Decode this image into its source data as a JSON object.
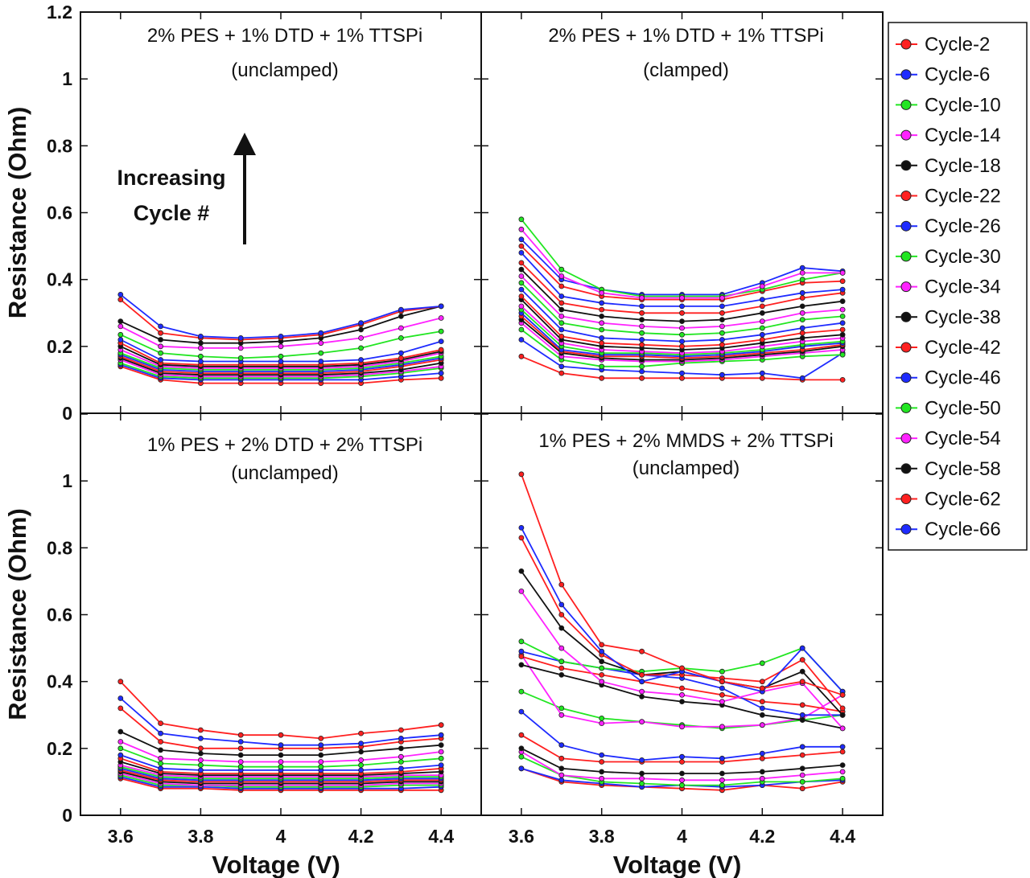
{
  "chart_data": {
    "type": "line",
    "x": [
      3.6,
      3.7,
      3.8,
      3.9,
      4.0,
      4.1,
      4.2,
      4.3,
      4.4
    ],
    "xlabel": "Voltage (V)",
    "ylabel": "Resistance (Ohm)",
    "xlim": [
      3.5,
      4.5
    ],
    "ylim": [
      0,
      1.2
    ],
    "x_ticks": [
      "3.6",
      "3.8",
      "4",
      "4.2",
      "4.4"
    ],
    "y_ticks_top": [
      "0",
      "0.2",
      "0.4",
      "0.6",
      "0.8",
      "1",
      "1.2"
    ],
    "y_ticks_bottom": [
      "0",
      "0.2",
      "0.4",
      "0.6",
      "0.8",
      "1"
    ],
    "legend": [
      {
        "name": "Cycle-2",
        "color": "#ff2020"
      },
      {
        "name": "Cycle-6",
        "color": "#1e2bff"
      },
      {
        "name": "Cycle-10",
        "color": "#22e622"
      },
      {
        "name": "Cycle-14",
        "color": "#ff22ff"
      },
      {
        "name": "Cycle-18",
        "color": "#111111"
      },
      {
        "name": "Cycle-22",
        "color": "#ff2020"
      },
      {
        "name": "Cycle-26",
        "color": "#1e2bff"
      },
      {
        "name": "Cycle-30",
        "color": "#22e622"
      },
      {
        "name": "Cycle-34",
        "color": "#ff22ff"
      },
      {
        "name": "Cycle-38",
        "color": "#111111"
      },
      {
        "name": "Cycle-42",
        "color": "#ff2020"
      },
      {
        "name": "Cycle-46",
        "color": "#1e2bff"
      },
      {
        "name": "Cycle-50",
        "color": "#22e622"
      },
      {
        "name": "Cycle-54",
        "color": "#ff22ff"
      },
      {
        "name": "Cycle-58",
        "color": "#111111"
      },
      {
        "name": "Cycle-62",
        "color": "#ff2020"
      },
      {
        "name": "Cycle-66",
        "color": "#1e2bff"
      }
    ],
    "annotation": {
      "line1": "Increasing",
      "line2": "Cycle #"
    },
    "panels": [
      {
        "title_line1": "2% PES + 1% DTD + 1% TTSPi",
        "title_line2": "(unclamped)",
        "series": [
          [
            0.14,
            0.1,
            0.09,
            0.09,
            0.09,
            0.09,
            0.09,
            0.1,
            0.105
          ],
          [
            0.145,
            0.105,
            0.1,
            0.1,
            0.1,
            0.1,
            0.1,
            0.11,
            0.12
          ],
          [
            0.15,
            0.11,
            0.105,
            0.105,
            0.105,
            0.105,
            0.11,
            0.12,
            0.135
          ],
          [
            0.16,
            0.115,
            0.11,
            0.11,
            0.11,
            0.11,
            0.115,
            0.125,
            0.14
          ],
          [
            0.165,
            0.12,
            0.115,
            0.115,
            0.115,
            0.115,
            0.12,
            0.13,
            0.15
          ],
          [
            0.17,
            0.125,
            0.12,
            0.12,
            0.12,
            0.12,
            0.125,
            0.14,
            0.16
          ],
          [
            0.175,
            0.13,
            0.125,
            0.125,
            0.125,
            0.125,
            0.13,
            0.145,
            0.165
          ],
          [
            0.18,
            0.135,
            0.13,
            0.13,
            0.13,
            0.13,
            0.135,
            0.15,
            0.17
          ],
          [
            0.19,
            0.14,
            0.135,
            0.135,
            0.135,
            0.135,
            0.14,
            0.155,
            0.18
          ],
          [
            0.2,
            0.145,
            0.14,
            0.14,
            0.14,
            0.14,
            0.145,
            0.16,
            0.185
          ],
          [
            0.21,
            0.15,
            0.145,
            0.145,
            0.145,
            0.145,
            0.15,
            0.165,
            0.19
          ],
          [
            0.22,
            0.16,
            0.155,
            0.155,
            0.155,
            0.155,
            0.16,
            0.18,
            0.215
          ],
          [
            0.235,
            0.18,
            0.17,
            0.165,
            0.17,
            0.18,
            0.195,
            0.225,
            0.245
          ],
          [
            0.26,
            0.2,
            0.195,
            0.195,
            0.2,
            0.21,
            0.225,
            0.255,
            0.285
          ],
          [
            0.275,
            0.22,
            0.21,
            0.21,
            0.215,
            0.225,
            0.25,
            0.29,
            0.32
          ],
          [
            0.34,
            0.24,
            0.225,
            0.22,
            0.225,
            0.235,
            0.265,
            0.305,
            0.32
          ],
          [
            0.355,
            0.26,
            0.23,
            0.225,
            0.23,
            0.24,
            0.27,
            0.31,
            0.32
          ]
        ]
      },
      {
        "title_line1": "2% PES + 1% DTD + 1% TTSPi",
        "title_line2": "(clamped)",
        "series": [
          [
            0.17,
            0.12,
            0.105,
            0.105,
            0.105,
            0.105,
            0.105,
            0.1,
            0.1
          ],
          [
            0.22,
            0.14,
            0.13,
            0.125,
            0.12,
            0.115,
            0.12,
            0.105,
            0.18
          ],
          [
            0.25,
            0.16,
            0.14,
            0.14,
            0.15,
            0.155,
            0.16,
            0.17,
            0.175
          ],
          [
            0.27,
            0.17,
            0.16,
            0.155,
            0.155,
            0.16,
            0.17,
            0.18,
            0.19
          ],
          [
            0.28,
            0.18,
            0.165,
            0.16,
            0.16,
            0.165,
            0.175,
            0.185,
            0.2
          ],
          [
            0.29,
            0.185,
            0.17,
            0.17,
            0.165,
            0.17,
            0.18,
            0.19,
            0.205
          ],
          [
            0.3,
            0.19,
            0.175,
            0.175,
            0.17,
            0.175,
            0.185,
            0.2,
            0.21
          ],
          [
            0.31,
            0.2,
            0.18,
            0.18,
            0.175,
            0.18,
            0.19,
            0.205,
            0.215
          ],
          [
            0.32,
            0.21,
            0.19,
            0.185,
            0.18,
            0.185,
            0.2,
            0.215,
            0.225
          ],
          [
            0.34,
            0.22,
            0.2,
            0.195,
            0.19,
            0.195,
            0.21,
            0.225,
            0.235
          ],
          [
            0.35,
            0.23,
            0.21,
            0.205,
            0.2,
            0.205,
            0.22,
            0.24,
            0.25
          ],
          [
            0.37,
            0.25,
            0.225,
            0.22,
            0.215,
            0.22,
            0.235,
            0.255,
            0.27
          ],
          [
            0.39,
            0.27,
            0.25,
            0.24,
            0.235,
            0.24,
            0.255,
            0.28,
            0.29
          ],
          [
            0.41,
            0.29,
            0.27,
            0.26,
            0.255,
            0.26,
            0.275,
            0.3,
            0.31
          ],
          [
            0.43,
            0.31,
            0.29,
            0.28,
            0.275,
            0.28,
            0.3,
            0.32,
            0.335
          ],
          [
            0.45,
            0.33,
            0.31,
            0.3,
            0.3,
            0.3,
            0.32,
            0.345,
            0.36
          ],
          [
            0.48,
            0.35,
            0.33,
            0.32,
            0.32,
            0.32,
            0.34,
            0.36,
            0.37
          ],
          [
            0.5,
            0.38,
            0.35,
            0.34,
            0.34,
            0.34,
            0.365,
            0.39,
            0.395
          ],
          [
            0.52,
            0.4,
            0.37,
            0.355,
            0.355,
            0.355,
            0.39,
            0.435,
            0.425
          ],
          [
            0.58,
            0.43,
            0.37,
            0.35,
            0.35,
            0.35,
            0.37,
            0.4,
            0.42
          ],
          [
            0.55,
            0.41,
            0.36,
            0.345,
            0.345,
            0.345,
            0.38,
            0.42,
            0.42
          ]
        ]
      },
      {
        "title_line1": "1% PES + 2% DTD + 2% TTSPi",
        "title_line2": "(unclamped)",
        "series": [
          [
            0.11,
            0.08,
            0.08,
            0.075,
            0.075,
            0.075,
            0.075,
            0.075,
            0.075
          ],
          [
            0.115,
            0.085,
            0.085,
            0.08,
            0.08,
            0.08,
            0.08,
            0.08,
            0.085
          ],
          [
            0.12,
            0.09,
            0.09,
            0.085,
            0.085,
            0.085,
            0.085,
            0.09,
            0.09
          ],
          [
            0.125,
            0.095,
            0.09,
            0.09,
            0.09,
            0.09,
            0.09,
            0.095,
            0.095
          ],
          [
            0.13,
            0.1,
            0.095,
            0.095,
            0.095,
            0.095,
            0.095,
            0.1,
            0.1
          ],
          [
            0.135,
            0.105,
            0.1,
            0.1,
            0.1,
            0.1,
            0.1,
            0.105,
            0.105
          ],
          [
            0.14,
            0.11,
            0.105,
            0.105,
            0.105,
            0.105,
            0.105,
            0.11,
            0.11
          ],
          [
            0.145,
            0.115,
            0.11,
            0.11,
            0.11,
            0.11,
            0.11,
            0.115,
            0.115
          ],
          [
            0.15,
            0.12,
            0.115,
            0.115,
            0.115,
            0.115,
            0.115,
            0.12,
            0.12
          ],
          [
            0.16,
            0.125,
            0.12,
            0.12,
            0.12,
            0.12,
            0.12,
            0.125,
            0.13
          ],
          [
            0.17,
            0.13,
            0.125,
            0.125,
            0.125,
            0.125,
            0.125,
            0.13,
            0.14
          ],
          [
            0.18,
            0.14,
            0.135,
            0.135,
            0.135,
            0.135,
            0.135,
            0.14,
            0.15
          ],
          [
            0.2,
            0.155,
            0.15,
            0.145,
            0.145,
            0.145,
            0.15,
            0.16,
            0.17
          ],
          [
            0.22,
            0.17,
            0.165,
            0.16,
            0.16,
            0.16,
            0.165,
            0.175,
            0.19
          ],
          [
            0.25,
            0.195,
            0.185,
            0.18,
            0.18,
            0.18,
            0.19,
            0.2,
            0.21
          ],
          [
            0.32,
            0.22,
            0.2,
            0.2,
            0.2,
            0.2,
            0.205,
            0.22,
            0.23
          ],
          [
            0.35,
            0.245,
            0.23,
            0.22,
            0.21,
            0.21,
            0.215,
            0.23,
            0.24
          ],
          [
            0.4,
            0.275,
            0.255,
            0.24,
            0.24,
            0.23,
            0.245,
            0.255,
            0.27
          ]
        ]
      },
      {
        "title_line1": "1% PES + 2% MMDS + 2% TTSPi",
        "title_line2": "(unclamped)",
        "series": [
          [
            0.14,
            0.1,
            0.09,
            0.085,
            0.08,
            0.075,
            0.09,
            0.08,
            0.1
          ],
          [
            0.14,
            0.105,
            0.095,
            0.085,
            0.09,
            0.085,
            0.09,
            0.1,
            0.105
          ],
          [
            0.175,
            0.12,
            0.1,
            0.095,
            0.09,
            0.09,
            0.1,
            0.1,
            0.11
          ],
          [
            0.19,
            0.12,
            0.11,
            0.11,
            0.105,
            0.105,
            0.11,
            0.12,
            0.13
          ],
          [
            0.2,
            0.14,
            0.13,
            0.125,
            0.125,
            0.125,
            0.13,
            0.14,
            0.15
          ],
          [
            0.24,
            0.17,
            0.16,
            0.16,
            0.16,
            0.16,
            0.17,
            0.18,
            0.19
          ],
          [
            0.31,
            0.21,
            0.18,
            0.165,
            0.175,
            0.17,
            0.185,
            0.205,
            0.205
          ],
          [
            0.37,
            0.32,
            0.29,
            0.28,
            0.27,
            0.26,
            0.27,
            0.285,
            0.3
          ],
          [
            0.48,
            0.3,
            0.275,
            0.28,
            0.265,
            0.265,
            0.27,
            0.29,
            0.36
          ],
          [
            0.45,
            0.42,
            0.39,
            0.355,
            0.34,
            0.33,
            0.3,
            0.285,
            0.26
          ],
          [
            0.475,
            0.44,
            0.42,
            0.4,
            0.38,
            0.36,
            0.34,
            0.33,
            0.31
          ],
          [
            0.49,
            0.46,
            0.44,
            0.42,
            0.41,
            0.38,
            0.32,
            0.3,
            0.3
          ],
          [
            0.52,
            0.46,
            0.44,
            0.43,
            0.44,
            0.43,
            0.455,
            0.5,
            0.37
          ],
          [
            0.67,
            0.5,
            0.4,
            0.37,
            0.36,
            0.34,
            0.37,
            0.395,
            0.26
          ],
          [
            0.73,
            0.56,
            0.46,
            0.42,
            0.43,
            0.4,
            0.38,
            0.43,
            0.3
          ],
          [
            0.83,
            0.6,
            0.48,
            0.42,
            0.42,
            0.41,
            0.4,
            0.465,
            0.32
          ],
          [
            0.86,
            0.63,
            0.49,
            0.4,
            0.43,
            0.4,
            0.37,
            0.5,
            0.37
          ],
          [
            1.02,
            0.69,
            0.51,
            0.49,
            0.44,
            0.4,
            0.38,
            0.4,
            0.36
          ]
        ]
      }
    ]
  }
}
